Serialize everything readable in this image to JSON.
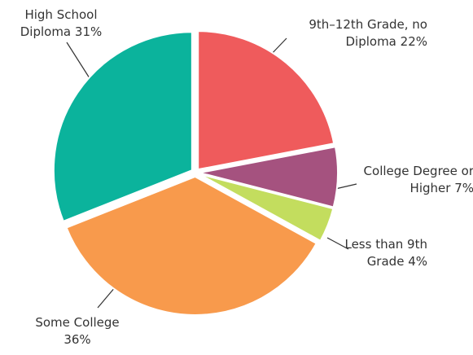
{
  "chart_data": {
    "type": "pie",
    "categories": [
      "9th–12th Grade, no Diploma",
      "College Degree or Higher",
      "Less than 9th Grade",
      "Some College",
      "High School Diploma"
    ],
    "values": [
      22,
      7,
      4,
      36,
      31
    ],
    "value_labels": [
      "22%",
      "7%",
      "4%",
      "36%",
      "31%"
    ],
    "colors": [
      "#ef5b5c",
      "#a5527f",
      "#c3dd5e",
      "#f89a4c",
      "#0bb39c"
    ]
  }
}
